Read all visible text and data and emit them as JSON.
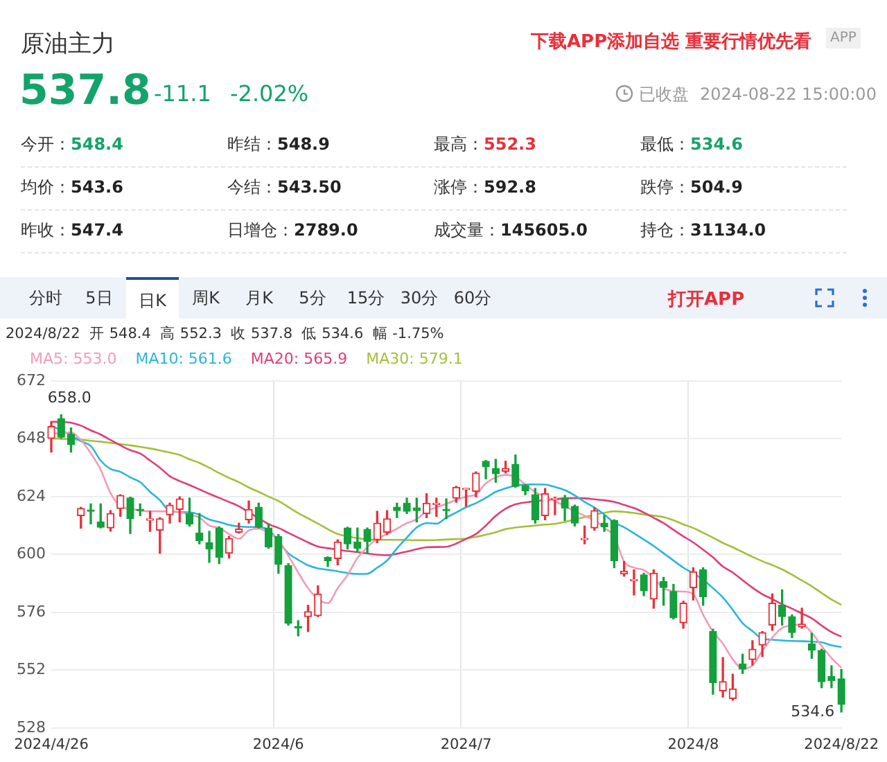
{
  "chart_data": {
    "type": "candlestick",
    "title": "原油主力",
    "annotations": [
      "下载APP添加自选 重要行情优先看",
      "APP",
      "537.8",
      "-11.1",
      "-2.02%",
      "已收盘",
      "2024-08-22 15:00:00",
      "今开：548.4",
      "昨结：548.9",
      "最高：552.3",
      "最低：534.6",
      "均价：543.6",
      "今结：543.50",
      "涨停：592.8",
      "跌停：504.9",
      "昨收：547.4",
      "日增仓：2789.0",
      "成交量：145605.0",
      "持仓：31134.0",
      "分时",
      "5日",
      "日K",
      "周K",
      "月K",
      "5分",
      "15分",
      "30分",
      "60分",
      "打开APP",
      "2024/8/22  开 548.4  高 552.3  收 537.8  低 534.6  幅 -1.75%",
      "658.0",
      "534.6"
    ],
    "categories": [
      "2024/4/26",
      null,
      null,
      null,
      null,
      null,
      null,
      null,
      null,
      null,
      null,
      null,
      null,
      null,
      null,
      null,
      null,
      null,
      null,
      null,
      null,
      null,
      null,
      "2024/6",
      null,
      null,
      null,
      null,
      null,
      null,
      null,
      null,
      null,
      null,
      null,
      null,
      null,
      null,
      null,
      null,
      null,
      null,
      "2024/7",
      null,
      null,
      null,
      null,
      null,
      null,
      null,
      null,
      null,
      null,
      null,
      null,
      null,
      null,
      null,
      null,
      null,
      null,
      null,
      null,
      null,
      null,
      "2024/8",
      null,
      null,
      null,
      null,
      null,
      null,
      null,
      null,
      null,
      null,
      null,
      null,
      null,
      null,
      "2024/8/22"
    ],
    "ohlc": [
      [
        648.2,
        655.1,
        642.5,
        653.1
      ],
      [
        656.3,
        658.0,
        648.2,
        648.7
      ],
      [
        649.9,
        652.5,
        642.5,
        645.6
      ],
      [
        616.1,
        619.6,
        610.9,
        619.1
      ],
      [
        618.3,
        621.0,
        612.7,
        617.9
      ],
      [
        613.5,
        621.0,
        611.0,
        611.3
      ],
      [
        611.0,
        618.2,
        609.7,
        617.0
      ],
      [
        619.1,
        624.8,
        615.8,
        624.5
      ],
      [
        623.4,
        623.8,
        608.7,
        614.8
      ],
      [
        618.7,
        621.0,
        616.1,
        618.2
      ],
      [
        614.2,
        617.9,
        609.6,
        614.6
      ],
      [
        610.1,
        615.3,
        600.5,
        614.8
      ],
      [
        616.5,
        621.3,
        613.0,
        620.5
      ],
      [
        618.7,
        623.9,
        613.5,
        623.1
      ],
      [
        617.0,
        623.4,
        611.8,
        612.7
      ],
      [
        608.9,
        617.0,
        604.4,
        605.8
      ],
      [
        604.9,
        609.6,
        596.7,
        602.3
      ],
      [
        611.0,
        611.5,
        596.2,
        598.8
      ],
      [
        600.5,
        607.5,
        598.5,
        606.6
      ],
      [
        609.2,
        613.0,
        608.9,
        610.6
      ],
      [
        614.4,
        622.2,
        613.0,
        618.7
      ],
      [
        619.6,
        621.3,
        611.0,
        611.3
      ],
      [
        611.0,
        612.7,
        602.6,
        603.1
      ],
      [
        607.5,
        608.3,
        592.2,
        595.9
      ],
      [
        595.3,
        596.2,
        570.7,
        571.4
      ],
      [
        569.9,
        572.5,
        566.2,
        569.5
      ],
      [
        574.2,
        578.9,
        568.0,
        576.3
      ],
      [
        574.6,
        587.0,
        574.2,
        583.6
      ],
      [
        598.8,
        599.0,
        595.0,
        597.4
      ],
      [
        598.3,
        606.1,
        595.7,
        605.2
      ],
      [
        611.0,
        611.3,
        602.3,
        604.4
      ],
      [
        605.2,
        611.0,
        600.9,
        602.6
      ],
      [
        610.4,
        611.0,
        600.5,
        605.4
      ],
      [
        606.1,
        617.9,
        604.9,
        613.0
      ],
      [
        609.2,
        618.2,
        608.3,
        614.8
      ],
      [
        619.6,
        621.3,
        615.3,
        618.2
      ],
      [
        621.3,
        623.4,
        617.0,
        617.9
      ],
      [
        619.3,
        623.4,
        613.5,
        618.2
      ],
      [
        617.0,
        625.2,
        615.3,
        621.3
      ],
      [
        620.7,
        623.4,
        615.8,
        621.0
      ],
      [
        618.7,
        623.1,
        614.8,
        618.2
      ],
      [
        623.4,
        628.3,
        621.7,
        627.9
      ],
      [
        626.9,
        627.4,
        620.0,
        627.2
      ],
      [
        626.2,
        634.3,
        623.9,
        633.8
      ],
      [
        638.7,
        639.0,
        631.4,
        636.4
      ],
      [
        635.6,
        639.5,
        630.0,
        633.5
      ],
      [
        634.5,
        638.7,
        633.8,
        635.7
      ],
      [
        637.3,
        641.3,
        627.9,
        628.3
      ],
      [
        628.6,
        629.1,
        624.8,
        626.5
      ],
      [
        624.8,
        627.4,
        613.0,
        614.4
      ],
      [
        616.1,
        627.4,
        614.4,
        625.2
      ],
      [
        622.7,
        623.8,
        616.5,
        623.1
      ],
      [
        623.4,
        624.5,
        614.1,
        619.3
      ],
      [
        620.0,
        620.5,
        611.8,
        613.0
      ],
      [
        606.1,
        611.8,
        604.4,
        606.4
      ],
      [
        611.0,
        619.3,
        610.1,
        618.2
      ],
      [
        613.0,
        616.1,
        609.6,
        611.5
      ],
      [
        614.1,
        614.4,
        594.5,
        597.4
      ],
      [
        591.9,
        597.1,
        591.0,
        593.1
      ],
      [
        589.1,
        593.6,
        583.2,
        589.5
      ],
      [
        591.5,
        592.2,
        582.9,
        584.9
      ],
      [
        581.5,
        593.6,
        577.7,
        592.2
      ],
      [
        588.8,
        590.5,
        578.9,
        586.3
      ],
      [
        584.6,
        587.6,
        573.2,
        573.7
      ],
      [
        571.6,
        580.6,
        569.4,
        579.8
      ],
      [
        586.2,
        594.5,
        581.1,
        592.8
      ],
      [
        593.6,
        594.5,
        578.9,
        582.4
      ],
      [
        568.0,
        569.0,
        542.0,
        546.8
      ],
      [
        543.4,
        557.2,
        540.8,
        547.2
      ],
      [
        540.2,
        550.3,
        539.5,
        544.2
      ],
      [
        554.6,
        558.6,
        550.6,
        552.4
      ],
      [
        556.4,
        564.2,
        554.1,
        560.7
      ],
      [
        562.4,
        568.0,
        557.6,
        567.6
      ],
      [
        570.7,
        583.6,
        568.5,
        579.8
      ],
      [
        578.9,
        585.3,
        570.7,
        574.2
      ],
      [
        574.2,
        574.9,
        565.5,
        567.6
      ],
      [
        569.9,
        577.7,
        569.4,
        571.1
      ],
      [
        562.8,
        567.3,
        556.9,
        560.3
      ],
      [
        560.2,
        560.7,
        544.7,
        547.2
      ],
      [
        549.4,
        553.8,
        544.7,
        547.7
      ],
      [
        548.4,
        552.3,
        534.6,
        537.8
      ]
    ],
    "colors": [
      "#e8303a",
      "#14a03c",
      "#14a03c",
      "#e8303a",
      "#14a03c",
      "#14a03c",
      "#e8303a",
      "#e8303a",
      "#14a03c",
      "#14a03c",
      "#e8303a",
      "#e8303a",
      "#e8303a",
      "#e8303a",
      "#14a03c",
      "#14a03c",
      "#14a03c",
      "#14a03c",
      "#e8303a",
      "#e8303a",
      "#e8303a",
      "#14a03c",
      "#14a03c",
      "#14a03c",
      "#14a03c",
      "#14a03c",
      "#e8303a",
      "#e8303a",
      "#14a03c",
      "#e8303a",
      "#14a03c",
      "#14a03c",
      "#14a03c",
      "#e8303a",
      "#e8303a",
      "#14a03c",
      "#14a03c",
      "#14a03c",
      "#e8303a",
      "#e8303a",
      "#14a03c",
      "#e8303a",
      "#e8303a",
      "#e8303a",
      "#14a03c",
      "#14a03c",
      "#e8303a",
      "#14a03c",
      "#14a03c",
      "#14a03c",
      "#e8303a",
      "#e8303a",
      "#14a03c",
      "#14a03c",
      "#e8303a",
      "#e8303a",
      "#14a03c",
      "#14a03c",
      "#e8303a",
      "#e8303a",
      "#14a03c",
      "#e8303a",
      "#14a03c",
      "#14a03c",
      "#e8303a",
      "#e8303a",
      "#14a03c",
      "#14a03c",
      "#e8303a",
      "#e8303a",
      "#14a03c",
      "#e8303a",
      "#e8303a",
      "#e8303a",
      "#14a03c",
      "#14a03c",
      "#e8303a",
      "#14a03c",
      "#14a03c",
      "#14a03c",
      "#14a03c"
    ],
    "series": [
      {
        "type": "line",
        "name": "MA5: 553.0",
        "color": "#f59ab8",
        "values": [
          649.9,
          650.5,
          650.6,
          647.5,
          642,
          635.2,
          625.5,
          620,
          619,
          618.2,
          617.9,
          617.9,
          617.9,
          617.5,
          616.5,
          615.3,
          612,
          611,
          608.5,
          606.5,
          610,
          610.7,
          609,
          605.9,
          599.5,
          592.5,
          586,
          581.5,
          579.8,
          586,
          591.5,
          598.5,
          603,
          606.5,
          608.5,
          610.7,
          613,
          614.6,
          618,
          619.6,
          621,
          622.7,
          624,
          625,
          629.5,
          632,
          633,
          632.2,
          629,
          625.9,
          624,
          622.2,
          620,
          618,
          616,
          614.2,
          611,
          607.5,
          597,
          594.5,
          593.5,
          590.2,
          586,
          584.8,
          584.6,
          583.5,
          575,
          568,
          563,
          556.5,
          552.5,
          554,
          560,
          565.5,
          569.5,
          570.5,
          571,
          567.5,
          562,
          557,
          553
        ]
      },
      {
        "type": "line",
        "name": "MA10: 561.6",
        "color": "#29b6d8",
        "values": [
          653.4,
          651.5,
          649.5,
          647,
          645,
          639,
          635.5,
          634.3,
          632,
          630,
          626,
          622.5,
          618,
          617.6,
          617.5,
          616.5,
          614.5,
          613.5,
          612.3,
          611.6,
          611.4,
          611.3,
          610.2,
          null,
          600.5,
          597.8,
          595.5,
          594.2,
          593.6,
          593,
          592.3,
          591.9,
          592,
          594.5,
          597.5,
          602.5,
          607,
          611.2,
          613,
          612.8,
          615.3,
          617.4,
          619.6,
          621.3,
          623.5,
          626,
          627.4,
          628.6,
          629,
          629.1,
          629,
          628,
          626.7,
          624.5,
          621.8,
          619.5,
          616.6,
          613.2,
          611.3,
          608.8,
          606.2,
          603.5,
          600.5,
          597.5,
          594.5,
          592.2,
          589.5,
          586,
          582.2,
          577,
          571.5,
          568.2,
          565,
          564.6,
          564.3,
          564.1,
          564,
          563.8,
          563.5,
          562.3,
          561.6
        ]
      },
      {
        "type": "line",
        "name": "MA20: 565.9",
        "color": "#e23c7a",
        "values": [
          655.1,
          655,
          654.7,
          653.5,
          651.5,
          649.8,
          647.5,
          645.3,
          643.3,
          641.9,
          639,
          636,
          632.5,
          630.5,
          628.8,
          627,
          625.2,
          623.5,
          621.8,
          620,
          617.5,
          615,
          612.6,
          611,
          609,
          607,
          605,
          603.3,
          602.6,
          602,
          601.4,
          601,
          600.4,
          599.9,
          599.7,
          600.3,
          601.2,
          602.2,
          603,
          603.1,
          603.2,
          604.5,
          606.5,
          608.5,
          612,
          616,
          619,
          620.8,
          621.6,
          622.1,
          622.6,
          623,
          623.3,
          623.4,
          623.3,
          622.9,
          622.5,
          621.8,
          620.6,
          619.3,
          617.4,
          615.2,
          613,
          610.2,
          607.5,
          605,
          602,
          598.8,
          595,
          592.5,
          589.3,
          586.2,
          583.5,
          581.5,
          579.3,
          577.5,
          575.5,
          573.5,
          570.5,
          567.8,
          565.9
        ]
      },
      {
        "type": "line",
        "name": "MA30: 579.1",
        "color": "#a4c03a",
        "values": [
          648.2,
          648,
          647.8,
          647.6,
          647.2,
          646.8,
          646.3,
          645.8,
          645.3,
          644.7,
          644,
          643.2,
          642.3,
          641.3,
          639.5,
          638,
          636,
          633.8,
          631.8,
          630,
          627.8,
          626,
          624,
          622.2,
          619.7,
          617.2,
          615,
          612.8,
          610.5,
          608.5,
          607.5,
          606.8,
          606.2,
          606.1,
          606.1,
          606.1,
          606,
          605.9,
          605.9,
          606,
          606.2,
          606.4,
          606.6,
          607.3,
          608.2,
          609.2,
          610.5,
          611.2,
          611.6,
          612,
          612.4,
          612.7,
          613.5,
          614.5,
          615.5,
          616.5,
          617.3,
          617.9,
          617.7,
          617.2,
          616.6,
          616.1,
          615.5,
          614.2,
          612.5,
          611,
          609,
          607,
          604.8,
          603,
          601,
          599,
          597.2,
          595.6,
          593.8,
          591.6,
          589.2,
          586.8,
          584,
          581.3,
          579.1
        ]
      }
    ],
    "ylim": [
      528,
      672
    ],
    "yticks": [
      528,
      552,
      576,
      600,
      624,
      648,
      672
    ],
    "grid": true,
    "legend": "top left",
    "line_style": "solid",
    "marker": "none"
  }
}
